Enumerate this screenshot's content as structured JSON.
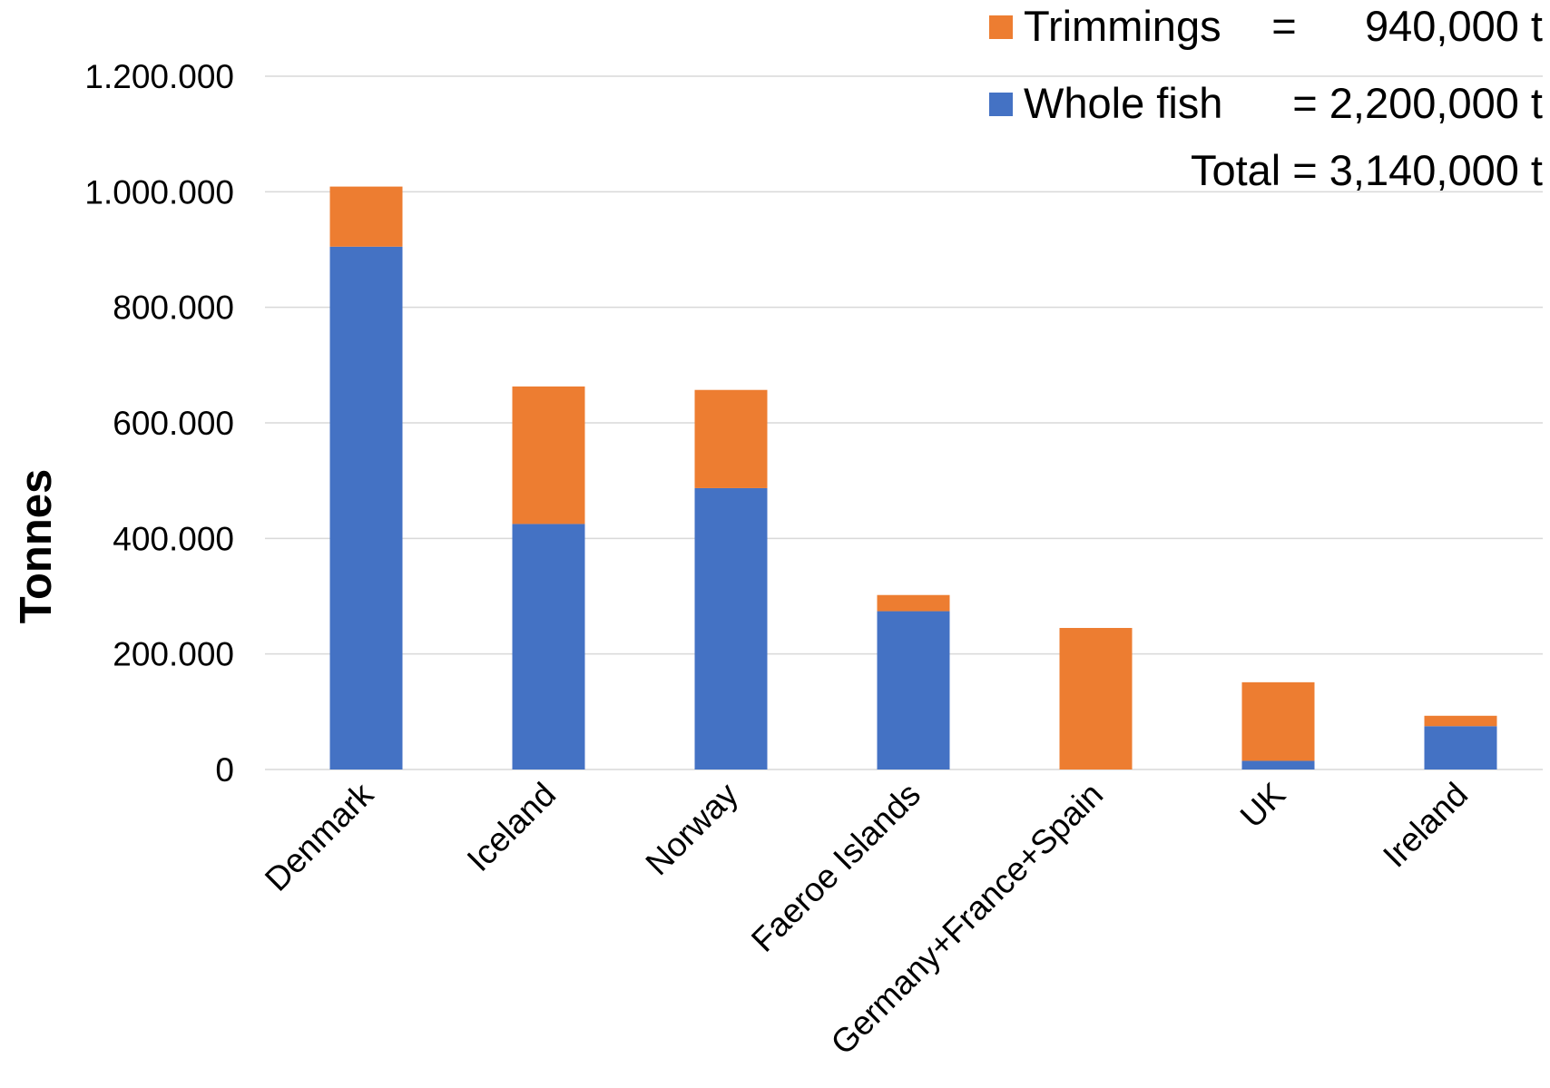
{
  "chart_data": {
    "type": "bar",
    "stacked": true,
    "categories": [
      "Denmark",
      "Iceland",
      "Norway",
      "Faeroe Islands",
      "Germany+France+Spain",
      "UK",
      "Ireland"
    ],
    "series": [
      {
        "name": "Whole fish",
        "color": "#4472c4",
        "values": [
          905000,
          425000,
          487000,
          274000,
          0,
          15000,
          75000
        ]
      },
      {
        "name": "Trimmings",
        "color": "#ed7d31",
        "values": [
          104000,
          238000,
          170000,
          28000,
          245000,
          136000,
          18000
        ]
      }
    ],
    "title": "",
    "xlabel": "",
    "ylabel": "Tonnes",
    "ylim": [
      0,
      1200000
    ],
    "yticks": [
      0,
      200000,
      400000,
      600000,
      800000,
      1000000,
      1200000
    ],
    "ytick_labels": [
      "0",
      "200.000",
      "400.000",
      "600.000",
      "800.000",
      "1.000.000",
      "1.200.000"
    ],
    "grid": true,
    "legend_position": "top-right",
    "legend": [
      {
        "label": "Trimmings",
        "eq": "=",
        "value": "940,000 t",
        "color": "#ed7d31"
      },
      {
        "label": "Whole fish",
        "eq": "= 2,200,000 t",
        "value": "",
        "color": "#4472c4"
      }
    ],
    "total_line": "Total = 3,140,000 t"
  }
}
